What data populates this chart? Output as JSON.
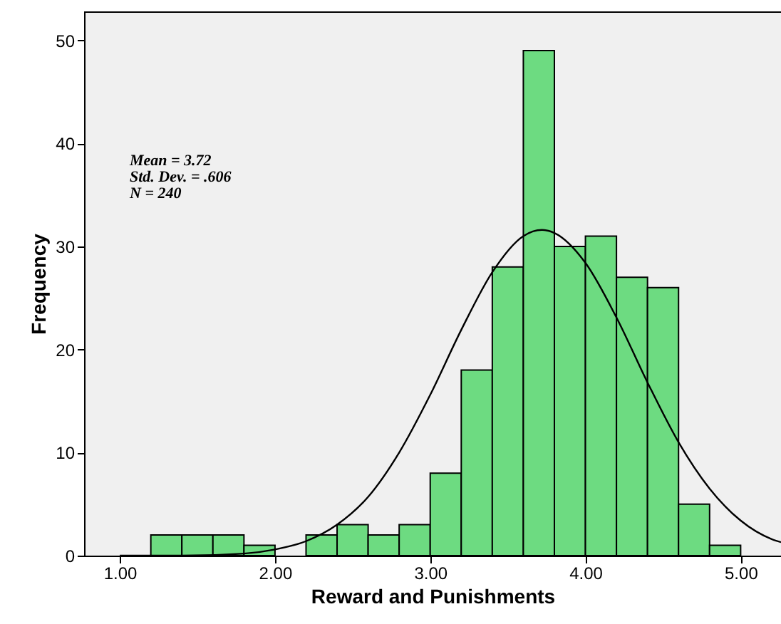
{
  "chart_data": {
    "type": "histogram",
    "xlabel": "Reward and Punishments",
    "ylabel": "Frequency",
    "bins": [
      1.2,
      1.4,
      1.6,
      1.8,
      2.0,
      2.2,
      2.4,
      2.6,
      2.8,
      3.0,
      3.2,
      3.4,
      3.6,
      3.8,
      4.0,
      4.2,
      4.4,
      4.6,
      4.8,
      5.0
    ],
    "values": [
      2,
      2,
      2,
      1,
      0,
      2,
      3,
      2,
      3,
      8,
      18,
      28,
      49,
      30,
      31,
      27,
      26,
      5,
      1
    ],
    "color": "#6ddb81",
    "series": [
      {
        "type": "line",
        "color": "#000000",
        "x": [
          1.0,
          1.4,
          1.8,
          2.0,
          2.2,
          2.4,
          2.6,
          2.8,
          3.0,
          3.2,
          3.4,
          3.6,
          3.72,
          3.8,
          4.0,
          4.2,
          4.4,
          4.6,
          4.8,
          5.0,
          5.2,
          5.26
        ],
        "values": [
          0.0,
          0.0,
          0.2,
          0.6,
          1.4,
          3.0,
          5.7,
          10.0,
          15.6,
          21.9,
          27.5,
          31.0,
          31.6,
          31.3,
          28.4,
          23.1,
          16.8,
          11.0,
          6.5,
          3.4,
          1.6,
          1.3
        ]
      }
    ],
    "xlim": [
      0.77,
      5.26
    ],
    "ylim": [
      0,
      52.8
    ],
    "xticks": [
      {
        "value": 1,
        "label": "1.00"
      },
      {
        "value": 2,
        "label": "2.00"
      },
      {
        "value": 3,
        "label": "3.00"
      },
      {
        "value": 4,
        "label": "4.00"
      },
      {
        "value": 5,
        "label": "5.00"
      }
    ],
    "yticks": [
      0,
      10,
      20,
      30,
      40,
      50
    ],
    "annotations": [
      "Mean = 3.72",
      "Std. Dev. = .606",
      "N = 240"
    ],
    "grid": false
  }
}
